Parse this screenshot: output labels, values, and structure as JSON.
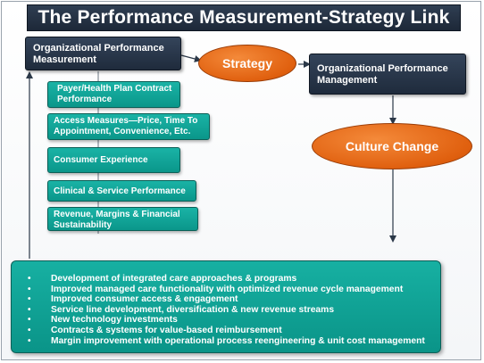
{
  "title": "The Performance Measurement-Strategy Link",
  "org_measurement": "Organizational Performance Measurement",
  "strategy": "Strategy",
  "org_management": "Organizational Performance Management",
  "culture_change": "Culture Change",
  "measures": [
    "Payer/Health Plan Contract Performance",
    "Access Measures—Price, Time To Appointment, Convenience, Etc.",
    "Consumer Experience",
    "Clinical & Service Performance",
    "Revenue, Margins & Financial Sustainability"
  ],
  "initiatives": [
    "Development of integrated care approaches & programs",
    "Improved managed care functionality with optimized revenue cycle management",
    "Improved consumer access & engagement",
    "Service line development, diversification & new revenue streams",
    "New technology investments",
    "Contracts & systems for value-based reimbursement",
    "Margin improvement with operational process reengineering & unit cost management"
  ],
  "colors": {
    "navy": "#1f2b3c",
    "teal": "#0fa396",
    "orange": "#e0600f"
  }
}
